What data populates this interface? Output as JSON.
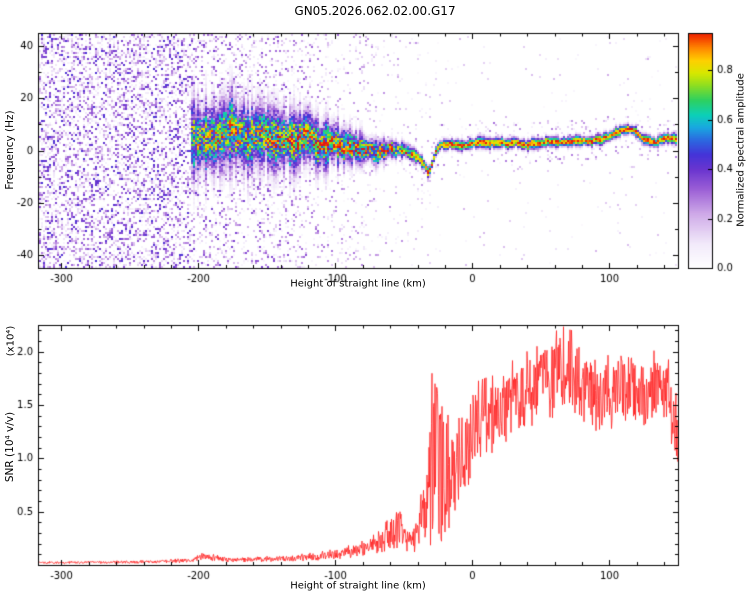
{
  "title": "GN05.2026.062.02.00.G17",
  "seed": 1337,
  "chart_data": [
    {
      "type": "heatmap",
      "xlabel": "Height of straight line (km)",
      "ylabel": "Frequency (Hz)",
      "xlim": [
        -317,
        150
      ],
      "ylim": [
        -45,
        45
      ],
      "xticks": [
        -300,
        -200,
        -100,
        0,
        100
      ],
      "xtick_labels": [
        "-300",
        "-200",
        "-100",
        "0",
        "100"
      ],
      "yticks": [
        -40,
        -20,
        0,
        20,
        40
      ],
      "ytick_labels": [
        "-40",
        "-20",
        "0",
        "20",
        "40"
      ],
      "colorbar": {
        "label": "Normalized spectral amplitude",
        "ticks": [
          0.0,
          0.2,
          0.4,
          0.6,
          0.8
        ],
        "tick_labels": [
          "0.0",
          "0.2",
          "0.4",
          "0.6",
          "0.8"
        ],
        "vmax": 0.95
      },
      "colormap_stops": [
        [
          0.0,
          "#ffffff"
        ],
        [
          0.1,
          "#f2eafa"
        ],
        [
          0.22,
          "#cfaae8"
        ],
        [
          0.32,
          "#9b5fd6"
        ],
        [
          0.4,
          "#6a35cf"
        ],
        [
          0.46,
          "#4433d8"
        ],
        [
          0.52,
          "#2b6ae0"
        ],
        [
          0.57,
          "#19a8e0"
        ],
        [
          0.62,
          "#0cd0b8"
        ],
        [
          0.68,
          "#2ed060"
        ],
        [
          0.74,
          "#8ede20"
        ],
        [
          0.79,
          "#d8e800"
        ],
        [
          0.84,
          "#ffd000"
        ],
        [
          0.89,
          "#ff8800"
        ],
        [
          0.94,
          "#f23000"
        ],
        [
          1.0,
          "#d00028"
        ]
      ],
      "signal_track": [
        [
          -215,
          6
        ],
        [
          -205,
          5
        ],
        [
          -195,
          6
        ],
        [
          -185,
          5
        ],
        [
          -175,
          6
        ],
        [
          -165,
          4
        ],
        [
          -155,
          6
        ],
        [
          -145,
          5
        ],
        [
          -135,
          4
        ],
        [
          -125,
          5
        ],
        [
          -115,
          3
        ],
        [
          -105,
          3
        ],
        [
          -95,
          2
        ],
        [
          -85,
          1.5
        ],
        [
          -75,
          1
        ],
        [
          -65,
          0.5
        ],
        [
          -57,
          0
        ],
        [
          -50,
          0
        ],
        [
          -45,
          -1
        ],
        [
          -40,
          -2.5
        ],
        [
          -36,
          -5
        ],
        [
          -32,
          -9
        ],
        [
          -29,
          -5
        ],
        [
          -26,
          0
        ],
        [
          -22,
          2
        ],
        [
          -15,
          2.5
        ],
        [
          -5,
          2
        ],
        [
          5,
          2.5
        ],
        [
          20,
          3
        ],
        [
          35,
          2.5
        ],
        [
          50,
          3
        ],
        [
          65,
          3
        ],
        [
          80,
          3
        ],
        [
          92,
          4
        ],
        [
          100,
          5.5
        ],
        [
          108,
          7.5
        ],
        [
          114,
          8
        ],
        [
          120,
          6
        ],
        [
          127,
          4
        ],
        [
          134,
          3
        ],
        [
          141,
          5
        ],
        [
          146,
          4.5
        ],
        [
          150,
          4
        ]
      ],
      "signal_width": [
        [
          -215,
          9
        ],
        [
          -190,
          8
        ],
        [
          -165,
          7.5
        ],
        [
          -140,
          6.5
        ],
        [
          -120,
          6
        ],
        [
          -100,
          4.5
        ],
        [
          -85,
          3.5
        ],
        [
          -70,
          2.8
        ],
        [
          -58,
          2.0
        ],
        [
          -48,
          1.5
        ],
        [
          -38,
          1.3
        ],
        [
          -25,
          1.1
        ],
        [
          0,
          1.1
        ],
        [
          150,
          1.1
        ]
      ],
      "signal_peak": [
        [
          -215,
          0.72
        ],
        [
          -180,
          0.78
        ],
        [
          -150,
          0.82
        ],
        [
          -120,
          0.85
        ],
        [
          -90,
          0.88
        ],
        [
          -60,
          0.9
        ],
        [
          -45,
          0.93
        ],
        [
          -20,
          0.95
        ],
        [
          150,
          0.95
        ]
      ],
      "noise_profile": [
        [
          -320,
          0.5,
          0.45
        ],
        [
          -210,
          0.5,
          0.45
        ],
        [
          -200,
          0.32,
          0.4
        ],
        [
          -170,
          0.28,
          0.38
        ],
        [
          -140,
          0.24,
          0.36
        ],
        [
          -115,
          0.2,
          0.34
        ],
        [
          -95,
          0.14,
          0.3
        ],
        [
          -75,
          0.1,
          0.28
        ],
        [
          -55,
          0.08,
          0.26
        ],
        [
          -40,
          0.06,
          0.25
        ],
        [
          -28,
          0.04,
          0.24
        ],
        [
          -15,
          0.02,
          0.22
        ],
        [
          0,
          0.015,
          0.2
        ],
        [
          90,
          0.015,
          0.2
        ],
        [
          110,
          0.035,
          0.24
        ],
        [
          125,
          0.025,
          0.22
        ],
        [
          150,
          0.02,
          0.2
        ]
      ]
    },
    {
      "type": "line",
      "xlabel": "Height of straight line (km)",
      "ylabel": "SNR (10⁴ v/v)",
      "scale_note": "(x10⁴)",
      "color": "#ff2222",
      "xlim": [
        -317,
        150
      ],
      "ylim": [
        0,
        2.25
      ],
      "xticks": [
        -300,
        -200,
        -100,
        0,
        100
      ],
      "xtick_labels": [
        "-300",
        "-200",
        "-100",
        "0",
        "100"
      ],
      "yticks": [
        0.5,
        1.0,
        1.5,
        2.0
      ],
      "ytick_labels": [
        "0.5",
        "1.0",
        "1.5",
        "2.0"
      ],
      "envelope": [
        [
          -320,
          0.01,
          0.03
        ],
        [
          -270,
          0.012,
          0.035
        ],
        [
          -230,
          0.015,
          0.045
        ],
        [
          -205,
          0.02,
          0.06
        ],
        [
          -196,
          0.04,
          0.11
        ],
        [
          -188,
          0.035,
          0.09
        ],
        [
          -175,
          0.025,
          0.06
        ],
        [
          -160,
          0.03,
          0.07
        ],
        [
          -145,
          0.03,
          0.08
        ],
        [
          -130,
          0.035,
          0.09
        ],
        [
          -115,
          0.04,
          0.11
        ],
        [
          -100,
          0.05,
          0.14
        ],
        [
          -88,
          0.07,
          0.18
        ],
        [
          -78,
          0.09,
          0.22
        ],
        [
          -68,
          0.11,
          0.3
        ],
        [
          -60,
          0.13,
          0.42
        ],
        [
          -55,
          0.14,
          0.52
        ],
        [
          -50,
          0.12,
          0.38
        ],
        [
          -44,
          0.1,
          0.3
        ],
        [
          -38,
          0.1,
          0.55
        ],
        [
          -33,
          0.15,
          1.1
        ],
        [
          -28,
          0.2,
          1.85
        ],
        [
          -24,
          0.15,
          1.6
        ],
        [
          -20,
          0.3,
          1.5
        ],
        [
          -14,
          0.35,
          1.3
        ],
        [
          -8,
          0.55,
          1.5
        ],
        [
          -2,
          0.75,
          1.58
        ],
        [
          5,
          0.95,
          1.65
        ],
        [
          15,
          1.05,
          1.7
        ],
        [
          25,
          1.15,
          1.8
        ],
        [
          35,
          1.25,
          1.9
        ],
        [
          45,
          1.3,
          1.95
        ],
        [
          55,
          1.35,
          2.05
        ],
        [
          65,
          1.4,
          2.15
        ],
        [
          75,
          1.4,
          2.1
        ],
        [
          85,
          1.3,
          2.0
        ],
        [
          95,
          1.2,
          1.85
        ],
        [
          105,
          1.3,
          1.95
        ],
        [
          115,
          1.35,
          2.0
        ],
        [
          125,
          1.3,
          1.9
        ],
        [
          135,
          1.35,
          1.95
        ],
        [
          143,
          1.25,
          1.85
        ],
        [
          148,
          0.9,
          1.7
        ],
        [
          150,
          0.65,
          1.55
        ]
      ]
    }
  ]
}
